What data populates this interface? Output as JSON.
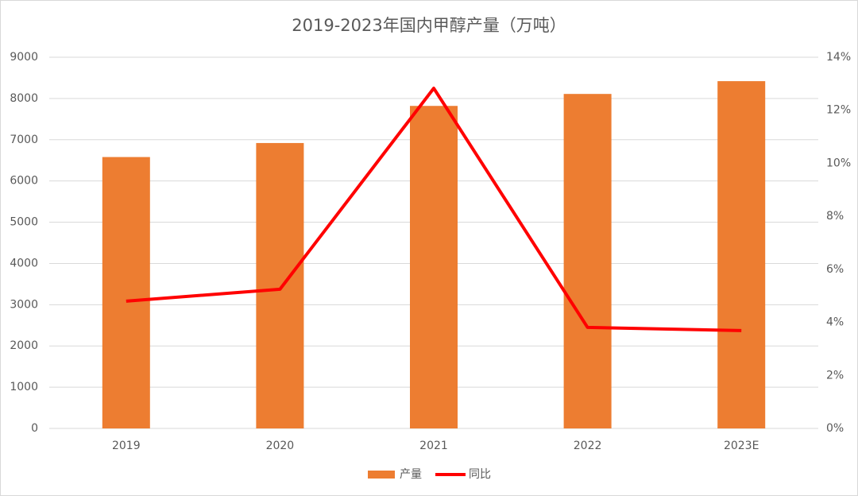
{
  "chart_data": {
    "type": "bar",
    "title": "2019-2023年国内甲醇产量（万吨）",
    "categories": [
      "2019",
      "2020",
      "2021",
      "2022",
      "2023E"
    ],
    "series": [
      {
        "name": "产量",
        "color": "#ed7d31",
        "values": [
          6580,
          6920,
          7820,
          8110,
          8420
        ]
      },
      {
        "name": "同比",
        "color": "#ff0000",
        "type": "line",
        "axis": "y2",
        "values": [
          4.8,
          5.25,
          12.83,
          3.81,
          3.69
        ]
      }
    ],
    "ylim": [
      0,
      9000
    ],
    "yticks": [
      0,
      1000,
      2000,
      3000,
      4000,
      5000,
      6000,
      7000,
      8000,
      9000
    ],
    "y2lim": [
      0,
      14
    ],
    "y2ticks": [
      {
        "value": 0,
        "label": "0%"
      },
      {
        "value": 2,
        "label": "2%"
      },
      {
        "value": 4,
        "label": "4%"
      },
      {
        "value": 6,
        "label": "6%"
      },
      {
        "value": 8,
        "label": "8%"
      },
      {
        "value": 10,
        "label": "10%"
      },
      {
        "value": 12,
        "label": "12%"
      },
      {
        "value": 14,
        "label": "14%"
      }
    ],
    "grid": true,
    "legend": "bottom"
  }
}
